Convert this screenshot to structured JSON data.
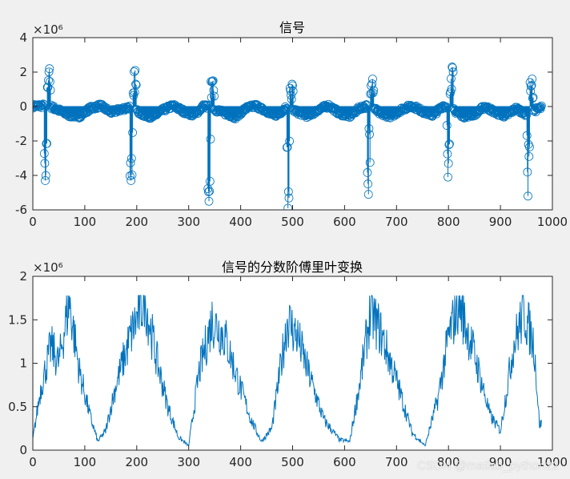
{
  "colors": {
    "series": "#0072BD",
    "axes_bg": "#ffffff",
    "figure_bg": "#f0f0f0",
    "axis": "#262626"
  },
  "watermark": "CSDN @matlab_python22",
  "chart_data": [
    {
      "type": "stem",
      "title": "信号",
      "exponent_label": "×10⁶",
      "xlim": [
        0,
        1000
      ],
      "ylim": [
        -6,
        4
      ],
      "xticks": [
        0,
        100,
        200,
        300,
        400,
        500,
        600,
        700,
        800,
        900,
        1000
      ],
      "yticks": [
        -6,
        -4,
        -2,
        0,
        2,
        4
      ],
      "xticklabels": [
        "0",
        "100",
        "200",
        "300",
        "400",
        "500",
        "600",
        "700",
        "800",
        "900",
        "1000"
      ],
      "yticklabels": [
        "-6",
        "-4",
        "-2",
        "0",
        "2",
        "4"
      ],
      "n_points": 980,
      "baseline_wave": {
        "x": [
          0,
          30,
          50,
          70,
          90,
          110,
          130,
          150,
          170,
          190,
          210,
          230,
          250,
          270,
          290,
          310,
          330,
          350,
          370,
          390,
          410,
          430,
          450,
          470,
          490,
          510,
          530,
          550,
          570,
          590,
          610,
          630,
          650,
          670,
          690,
          710,
          730,
          750,
          770,
          790,
          810,
          830,
          850,
          870,
          890,
          910,
          930,
          950,
          970,
          980
        ],
        "y": [
          0.05,
          0.1,
          -0.4,
          -0.9,
          -1.0,
          -0.2,
          0.1,
          -0.6,
          -0.3,
          0.0,
          -0.8,
          -1.1,
          -0.4,
          0.1,
          -0.5,
          -0.9,
          0.1,
          -0.3,
          -0.7,
          -1.1,
          -0.2,
          0.1,
          -0.6,
          -0.9,
          0.0,
          -0.6,
          -1.0,
          -0.3,
          0.1,
          -0.7,
          -1.0,
          -0.1,
          0.1,
          -0.8,
          -1.0,
          -0.3,
          0.1,
          -0.5,
          -0.9,
          0.1,
          -0.4,
          -1.0,
          -0.8,
          0.0,
          -0.6,
          -1.0,
          -0.2,
          -0.8,
          -0.3,
          -0.1
        ]
      },
      "spikes": [
        {
          "center": 28,
          "top": 2.2,
          "bottom": -4.3
        },
        {
          "center": 193,
          "top": 2.1,
          "bottom": -4.3
        },
        {
          "center": 343,
          "top": 1.5,
          "bottom": -5.5
        },
        {
          "center": 495,
          "top": 1.3,
          "bottom": -5.9
        },
        {
          "center": 650,
          "top": 1.6,
          "bottom": -5.1
        },
        {
          "center": 803,
          "top": 2.3,
          "bottom": -4.1
        },
        {
          "center": 957,
          "top": 1.6,
          "bottom": -5.2
        }
      ]
    },
    {
      "type": "line",
      "title": "信号的分数阶傅里叶变换",
      "exponent_label": "×10⁶",
      "xlim": [
        0,
        1000
      ],
      "ylim": [
        0,
        2
      ],
      "xticks": [
        0,
        100,
        200,
        300,
        400,
        500,
        600,
        700,
        800,
        900,
        1000
      ],
      "yticks": [
        0,
        0.5,
        1,
        1.5,
        2
      ],
      "xticklabels": [
        "0",
        "100",
        "200",
        "300",
        "400",
        "500",
        "600",
        "700",
        "800",
        "900",
        "1000"
      ],
      "yticklabels": [
        "0",
        "0.5",
        "1",
        "1.5",
        "2"
      ],
      "envelope": {
        "x": [
          0,
          15,
          35,
          50,
          70,
          90,
          110,
          125,
          140,
          160,
          190,
          215,
          240,
          260,
          280,
          300,
          320,
          345,
          370,
          395,
          420,
          440,
          460,
          490,
          510,
          530,
          560,
          590,
          610,
          630,
          650,
          670,
          700,
          730,
          755,
          780,
          800,
          820,
          850,
          880,
          900,
          925,
          945,
          965,
          975
        ],
        "y": [
          0.12,
          0.7,
          1.2,
          1.0,
          1.72,
          0.9,
          0.4,
          0.1,
          0.22,
          0.75,
          1.35,
          1.75,
          1.0,
          0.5,
          0.15,
          0.05,
          0.9,
          1.5,
          1.3,
          0.8,
          0.35,
          0.1,
          0.25,
          1.5,
          1.3,
          0.9,
          0.35,
          0.12,
          0.1,
          0.8,
          1.6,
          1.35,
          0.8,
          0.2,
          0.05,
          0.6,
          1.3,
          1.7,
          1.1,
          0.4,
          0.22,
          1.2,
          1.6,
          1.2,
          0.3
        ]
      },
      "n_points": 980
    }
  ]
}
